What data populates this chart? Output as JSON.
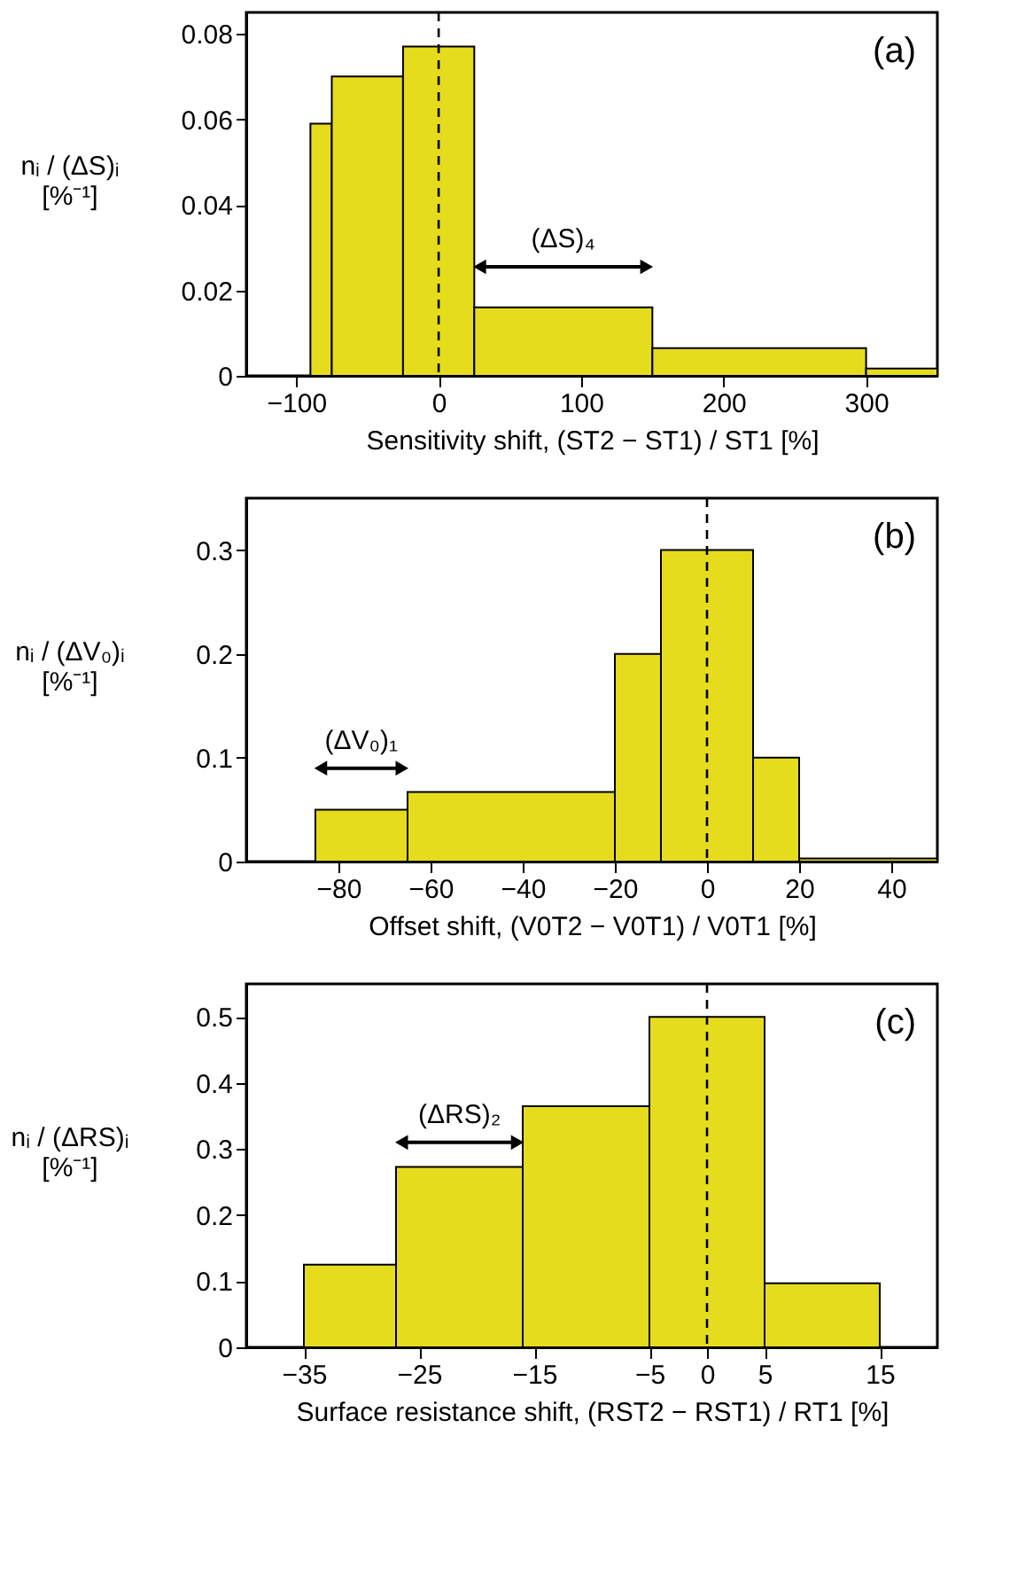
{
  "chart_data": [
    {
      "type": "histogram",
      "bins": [
        -90,
        -75,
        -25,
        25,
        150,
        300,
        350
      ],
      "values": [
        0.059,
        0.07,
        0.077,
        0.016,
        0.0065,
        0.0017
      ],
      "color": "#e6dc1e",
      "xlim": [
        -135,
        350
      ],
      "xticks": [
        -100,
        0,
        100,
        200,
        300
      ],
      "ylim": [
        0,
        0.085
      ],
      "yticks": [
        0,
        0.02,
        0.04,
        0.06,
        0.08
      ],
      "xlabel": "Sensitivity shift, (ST2 − ST1) / ST1   [%]",
      "ylabel": "nᵢ / (ΔS)ᵢ\n[%⁻¹]",
      "grid": false,
      "ref_lines": [
        {
          "axis": "x",
          "value": 0,
          "line_style": "dashed",
          "color": "#000000"
        }
      ],
      "annotations": [
        "(a)",
        "(ΔS)₄"
      ]
    },
    {
      "type": "histogram",
      "bins": [
        -85,
        -65,
        -20,
        -10,
        10,
        20,
        50
      ],
      "values": [
        0.05,
        0.067,
        0.2,
        0.3,
        0.1,
        0.003
      ],
      "color": "#e6dc1e",
      "xlim": [
        -100,
        50
      ],
      "xticks": [
        -80,
        -60,
        -40,
        -20,
        0,
        20,
        40
      ],
      "ylim": [
        0,
        0.35
      ],
      "yticks": [
        0,
        0.1,
        0.2,
        0.3
      ],
      "xlabel": "Offset shift, (V0T2 − V0T1) / V0T1   [%]",
      "ylabel": "nᵢ / (ΔV₀)ᵢ\n[%⁻¹]",
      "grid": false,
      "ref_lines": [
        {
          "axis": "x",
          "value": 0,
          "line_style": "dashed",
          "color": "#000000"
        }
      ],
      "annotations": [
        "(b)",
        "(ΔV₀)₁"
      ]
    },
    {
      "type": "histogram",
      "bins": [
        -35,
        -27,
        -16,
        -5,
        5,
        15
      ],
      "values": [
        0.125,
        0.273,
        0.365,
        0.5,
        0.097
      ],
      "color": "#e6dc1e",
      "xlim": [
        -40,
        20
      ],
      "xticks": [
        -35,
        -25,
        -15,
        -5,
        0,
        5,
        15
      ],
      "ylim": [
        0,
        0.55
      ],
      "yticks": [
        0,
        0.1,
        0.2,
        0.3,
        0.4,
        0.5
      ],
      "xlabel": "Surface resistance shift, (RST2 − RST1) / RT1   [%]",
      "ylabel": "nᵢ / (ΔRS)ᵢ\n[%⁻¹]",
      "grid": false,
      "ref_lines": [
        {
          "axis": "x",
          "value": 0,
          "line_style": "dashed",
          "color": "#000000"
        }
      ],
      "annotations": [
        "(c)",
        "(ΔRS)₂"
      ]
    }
  ]
}
